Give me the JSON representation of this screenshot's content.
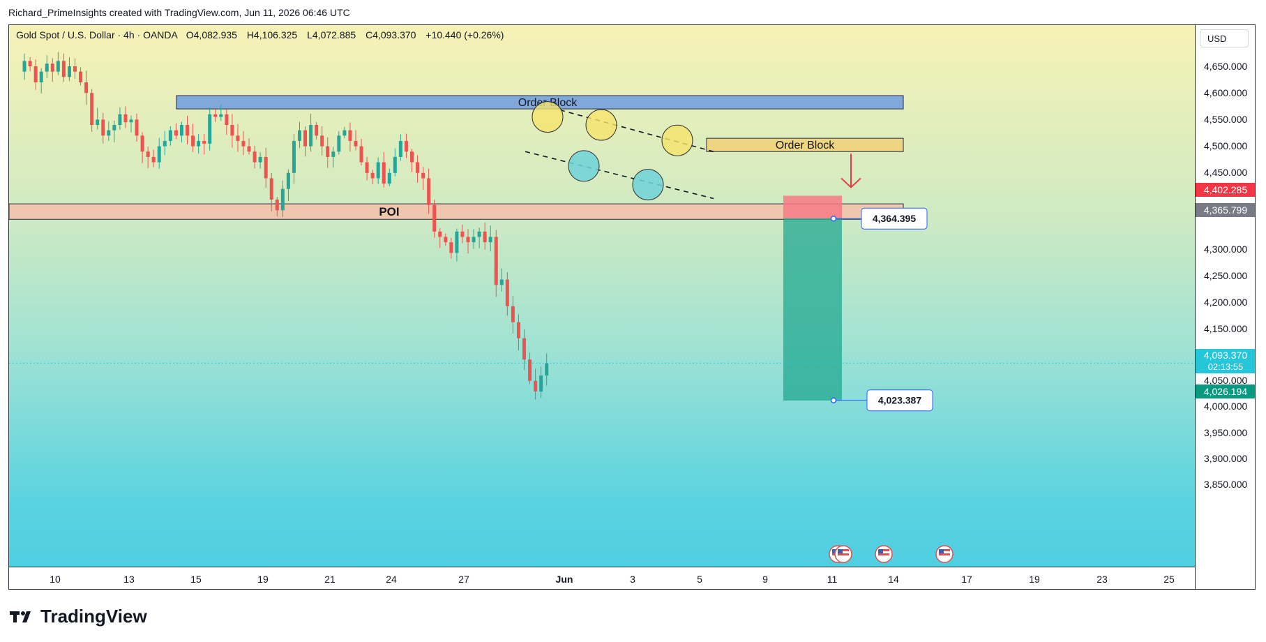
{
  "header": {
    "attribution": "Richard_PrimeInsights created with TradingView.com, Jun 11, 2026 06:46 UTC"
  },
  "symbol": {
    "name": "Gold Spot / U.S. Dollar · 4h · OANDA",
    "open": "O4,082.935",
    "high": "H4,106.325",
    "low": "L4,072.885",
    "close": "C4,093.370",
    "change": "+10.440 (+0.26%)"
  },
  "price_axis": {
    "currency": "USD",
    "ticks": [
      "4,650.000",
      "4,600.000",
      "4,550.000",
      "4,500.000",
      "4,450.000",
      "4,300.000",
      "4,250.000",
      "4,200.000",
      "4,150.000",
      "4,050.000",
      "4,000.000",
      "3,950.000",
      "3,900.000",
      "3,850.000"
    ],
    "tags": [
      {
        "label": "4,402.285",
        "color": "#f23645"
      },
      {
        "label": "4,365.799",
        "color": "#787b86"
      },
      {
        "label": "4,093.370",
        "label2": "02:13:55",
        "color": "#26c6da"
      },
      {
        "label": "4,026.194",
        "color": "#089981"
      }
    ]
  },
  "time_axis": {
    "ticks": [
      "10",
      "13",
      "15",
      "19",
      "21",
      "24",
      "27",
      "Jun",
      "3",
      "5",
      "9",
      "11",
      "14",
      "17",
      "19",
      "23",
      "25"
    ]
  },
  "annotations": {
    "order_block_top": "Order Block",
    "order_block_right": "Order Block",
    "poi": "POI",
    "entry_label": "4,364.395",
    "target_label": "4,023.387"
  },
  "colors": {
    "bull": "#26a69a",
    "bear": "#ef5350",
    "order_block_blue": "#6f9be0",
    "order_block_yellow": "#f0d27a",
    "poi": "#f5c1a8",
    "stop_zone": "#f77a84",
    "target_zone": "#21a892",
    "highlight_yellow": "#f5e46b",
    "highlight_teal": "#6fd3d8"
  },
  "branding": {
    "logo_text": "TradingView"
  },
  "chart_data": {
    "type": "candlestick",
    "title": "Gold Spot / U.S. Dollar · 4h · OANDA",
    "x_ticks": [
      "10",
      "13",
      "15",
      "19",
      "21",
      "24",
      "27",
      "Jun",
      "3",
      "5",
      "9",
      "11",
      "14",
      "17",
      "19",
      "23",
      "25"
    ],
    "ylim": [
      3850,
      4680
    ],
    "zones": [
      {
        "name": "Order Block",
        "from": 4570,
        "to": 4595
      },
      {
        "name": "Order Block",
        "from": 4490,
        "to": 4515
      },
      {
        "name": "POI",
        "from": 4363,
        "to": 4392
      },
      {
        "name": "stop",
        "from": 4365,
        "to": 4402
      },
      {
        "name": "target",
        "from": 4023,
        "to": 4365
      }
    ],
    "levels": {
      "entry": 4364.395,
      "target": 4023.387,
      "last": 4093.37
    },
    "close_path": [
      4640,
      4660,
      4650,
      4620,
      4640,
      4655,
      4640,
      4660,
      4630,
      4650,
      4640,
      4620,
      4600,
      4540,
      4550,
      4520,
      4530,
      4540,
      4560,
      4545,
      4550,
      4520,
      4490,
      4480,
      4470,
      4500,
      4510,
      4530,
      4520,
      4540,
      4520,
      4500,
      4510,
      4505,
      4560,
      4555,
      4560,
      4540,
      4520,
      4510,
      4500,
      4490,
      4470,
      4480,
      4440,
      4400,
      4380,
      4420,
      4450,
      4510,
      4530,
      4500,
      4540,
      4520,
      4500,
      4480,
      4490,
      4520,
      4530,
      4510,
      4500,
      4470,
      4450,
      4440,
      4470,
      4430,
      4450,
      4480,
      4510,
      4490,
      4470,
      4450,
      4440,
      4390,
      4340,
      4330,
      4320,
      4300,
      4340,
      4330,
      4320,
      4330,
      4340,
      4320,
      4330,
      4240,
      4250,
      4200,
      4170,
      4140,
      4100,
      4060,
      4040,
      4070,
      4093
    ]
  }
}
